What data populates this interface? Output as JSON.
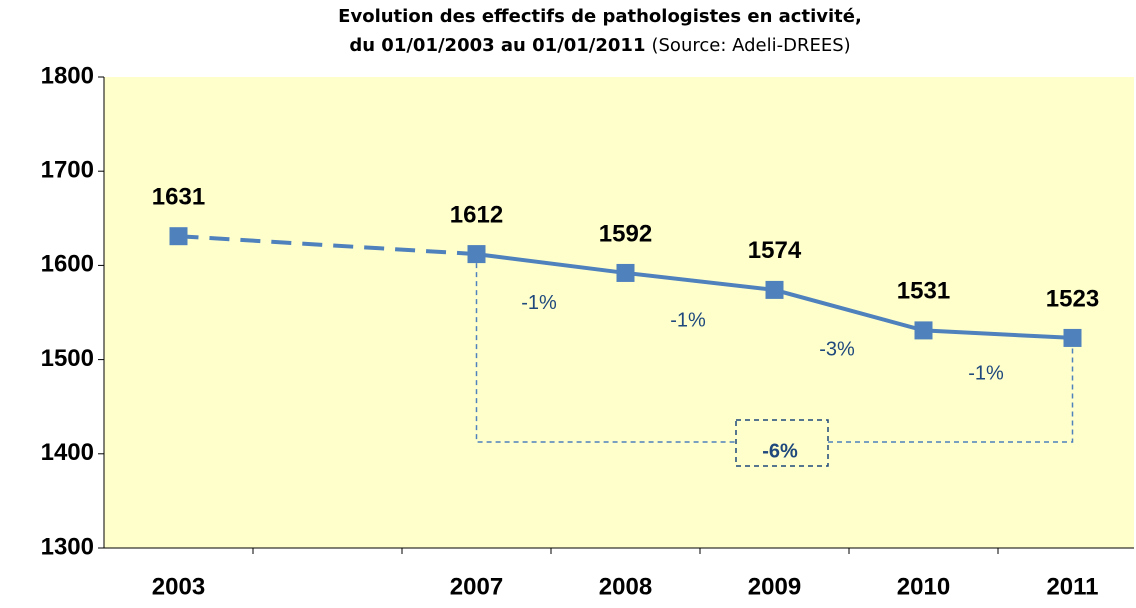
{
  "chart_data": {
    "type": "line",
    "title": [
      "Evolution des effectifs de pathologistes en activité,",
      "du 01/01/2003 au 01/01/2011"
    ],
    "source": "(Source: Adeli-DREES)",
    "categories": [
      "2003",
      null,
      "2007",
      "2008",
      "2009",
      "2010",
      "2011"
    ],
    "series": [
      {
        "color": "#4f81bd",
        "values": [
          1631,
          null,
          1612,
          1592,
          1574,
          1531,
          1523
        ]
      }
    ],
    "changes": [
      "-1%",
      "-1%",
      "-3%",
      "-1%"
    ],
    "total_change": "-6%",
    "ylim": [
      1300,
      1800
    ],
    "yticks": [
      1300,
      1400,
      1500,
      1600,
      1700,
      1800
    ],
    "background": "#ffffcc"
  }
}
